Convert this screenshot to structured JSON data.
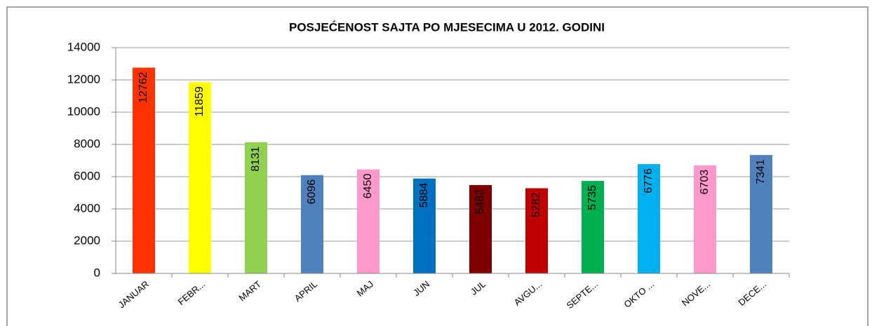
{
  "chart_data": {
    "type": "bar",
    "title": "POSJEĆENOST SAJTA PO MJESECIMA U 2012. GODINI",
    "categories": [
      "JANUAR",
      "FEBR...",
      "MART",
      "APRIL",
      "MAJ",
      "JUN",
      "JUL",
      "AVGU...",
      "SEPTE...",
      "OKTO ...",
      "NOVE...",
      "DECE..."
    ],
    "values": [
      12762,
      11859,
      8131,
      6096,
      6450,
      5884,
      5482,
      5282,
      5735,
      6776,
      6703,
      7341
    ],
    "colors": [
      "#ff3300",
      "#ffff00",
      "#92d050",
      "#4f81bd",
      "#ff99cc",
      "#0070c0",
      "#7f0000",
      "#c00000",
      "#00b050",
      "#00b0f0",
      "#ff99cc",
      "#4f81bd"
    ],
    "ylim": [
      0,
      14000
    ],
    "yticks": [
      0,
      2000,
      4000,
      6000,
      8000,
      10000,
      12000,
      14000
    ],
    "grid": true
  }
}
